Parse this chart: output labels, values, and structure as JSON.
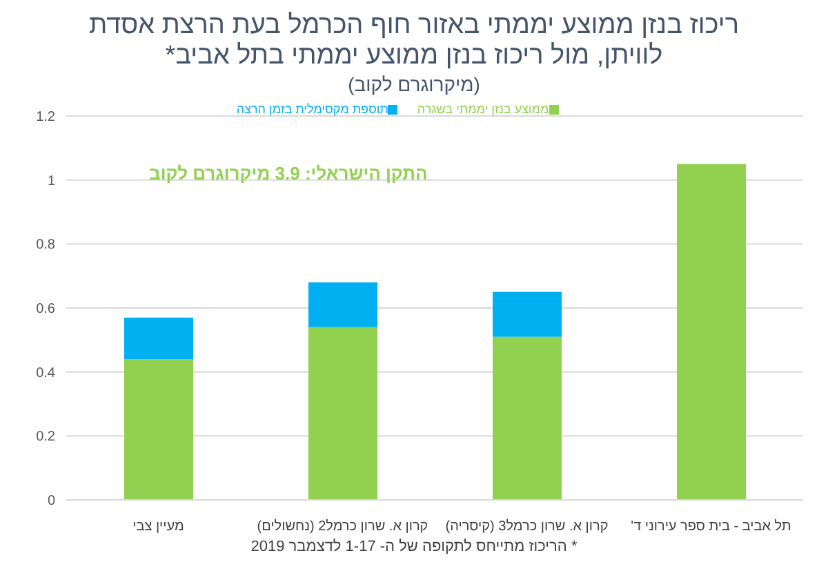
{
  "chart_data": {
    "type": "bar",
    "title": "ריכוז בנזן ממוצע יממתי באזור חוף הכרמל בעת הרצת אסדת לוויתן, מול ריכוז בנזן ממוצע יממתי בתל אביב*",
    "subtitle": "(מיקרוגרם לקוב)",
    "categories": [
      "מעיין צבי",
      "קרון א. שרון כרמל2 (נחשולים)",
      "קרון א. שרון כרמל3 (קיסריה)",
      "תל אביב - בית ספר עירוני ד'"
    ],
    "series": [
      {
        "name": "ממוצע בנזן יממתי בשגרה",
        "color": "#92d050",
        "values": [
          0.44,
          0.54,
          0.51,
          1.05
        ]
      },
      {
        "name": "תוספת מקסימלית בזמן הרצה",
        "color": "#00b0f0",
        "values": [
          0.13,
          0.14,
          0.14,
          null
        ]
      }
    ],
    "stacked": true,
    "ylim": [
      0,
      1.2
    ],
    "yticks": [
      0,
      0.2,
      0.4,
      0.6,
      0.8,
      1,
      1.2
    ],
    "grid": "y",
    "legend": "top",
    "annotations": [
      "התקן הישראלי: 3.9 מיקרוגרם לקוב",
      "* הריכוז מתייחס לתקופה של ה- 1-17 לדצמבר 2019"
    ]
  }
}
